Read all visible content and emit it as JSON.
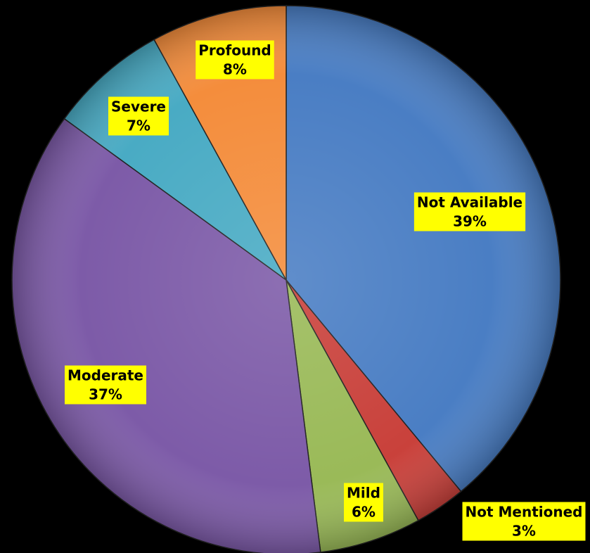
{
  "chart_data": {
    "type": "pie",
    "categories": [
      "Not Available",
      "Not Mentioned",
      "Mild",
      "Moderate",
      "Severe",
      "Profound"
    ],
    "values": [
      39,
      3,
      6,
      37,
      7,
      8
    ],
    "value_labels": [
      "39%",
      "3%",
      "6%",
      "37%",
      "7%",
      "8%"
    ],
    "colors": [
      "#4a7ec4",
      "#c9413b",
      "#9aba58",
      "#7d5ba8",
      "#49abc4",
      "#f48d3c"
    ]
  }
}
